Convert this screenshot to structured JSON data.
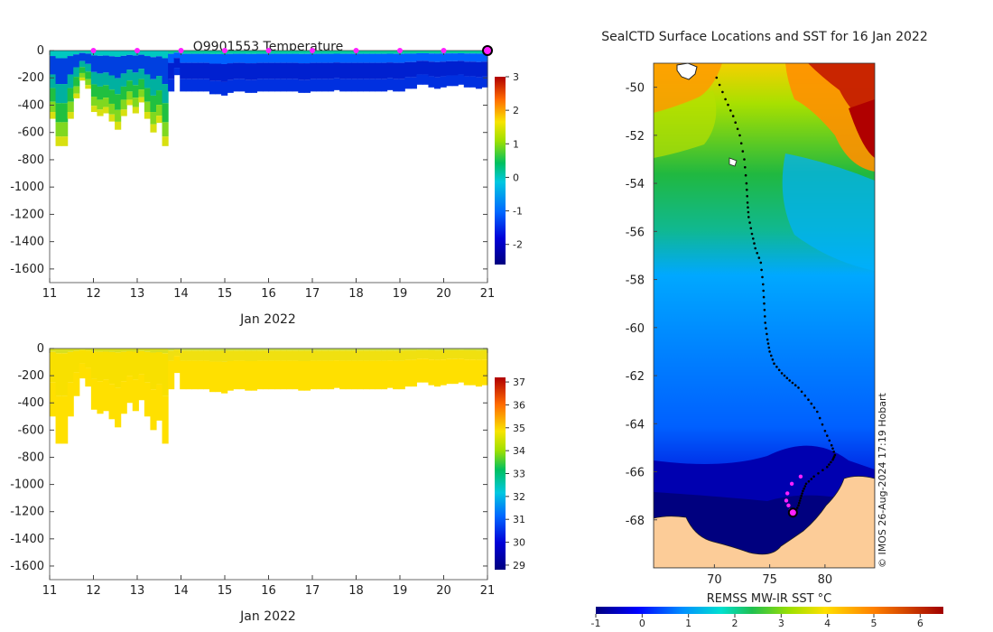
{
  "chart_data": [
    {
      "type": "heatmap",
      "title": "Q9901553  Temperature",
      "xlabel": "Jan 2022",
      "ylabel": "",
      "xlim": [
        11,
        21
      ],
      "ylim": [
        -1700,
        0
      ],
      "x_ticks": [
        11,
        12,
        13,
        14,
        15,
        16,
        17,
        18,
        19,
        20,
        21
      ],
      "y_ticks": [
        0,
        -200,
        -400,
        -600,
        -800,
        -1000,
        -1200,
        -1400,
        -1600
      ],
      "colorbar": {
        "min": -2.6,
        "max": 3,
        "ticks": [
          -2,
          -1,
          0,
          1,
          2,
          3
        ]
      },
      "profile_max_depth": [
        -500,
        -700,
        -700,
        -500,
        -350,
        -220,
        -280,
        -450,
        -480,
        -460,
        -520,
        -580,
        -480,
        -400,
        -460,
        -380,
        -500,
        -600,
        -530,
        -700,
        -300,
        -180,
        -300,
        -300,
        -300,
        -300,
        -300,
        -320,
        -320,
        -330,
        -310,
        -300,
        -300,
        -310,
        -310,
        -300,
        -300,
        -300,
        -300,
        -300,
        -300,
        -300,
        -310,
        -310,
        -300,
        -300,
        -300,
        -300,
        -290,
        -300,
        -300,
        -300,
        -300,
        -300,
        -300,
        -300,
        -300,
        -290,
        -300,
        -300,
        -280,
        -280,
        -250,
        -250,
        -270,
        -280,
        -270,
        -260,
        -260,
        -250,
        -270,
        -270,
        -280,
        -270
      ],
      "profile_positions_day": [
        12,
        13,
        14,
        15,
        16,
        17,
        18,
        19,
        20
      ],
      "current_position_day": 21
    },
    {
      "type": "heatmap",
      "title": "",
      "xlabel": "Jan 2022",
      "ylabel": "",
      "xlim": [
        11,
        21
      ],
      "ylim": [
        -1700,
        0
      ],
      "x_ticks": [
        11,
        12,
        13,
        14,
        15,
        16,
        17,
        18,
        19,
        20,
        21
      ],
      "y_ticks": [
        0,
        -200,
        -400,
        -600,
        -800,
        -1000,
        -1200,
        -1400,
        -1600
      ],
      "colorbar": {
        "min": 28.8,
        "max": 37.2,
        "ticks": [
          29,
          30,
          31,
          32,
          33,
          34,
          35,
          36,
          37
        ]
      },
      "profile_max_depth": [
        -500,
        -700,
        -700,
        -500,
        -350,
        -220,
        -280,
        -450,
        -480,
        -460,
        -520,
        -580,
        -480,
        -400,
        -460,
        -380,
        -500,
        -600,
        -530,
        -700,
        -300,
        -180,
        -300,
        -300,
        -300,
        -300,
        -300,
        -320,
        -320,
        -330,
        -310,
        -300,
        -300,
        -310,
        -310,
        -300,
        -300,
        -300,
        -300,
        -300,
        -300,
        -300,
        -310,
        -310,
        -300,
        -300,
        -300,
        -300,
        -290,
        -300,
        -300,
        -300,
        -300,
        -300,
        -300,
        -300,
        -300,
        -290,
        -300,
        -300,
        -280,
        -280,
        -250,
        -250,
        -270,
        -280,
        -270,
        -260,
        -260,
        -250,
        -270,
        -270,
        -280,
        -270
      ]
    },
    {
      "type": "map",
      "title": "SealCTD Surface Locations and SST for 16 Jan 2022",
      "xlabel": "",
      "ylabel": "",
      "xlim": [
        64.5,
        84.5
      ],
      "ylim": [
        -70,
        -49
      ],
      "x_ticks": [
        70,
        75,
        80
      ],
      "y_ticks": [
        -50,
        -52,
        -54,
        -56,
        -58,
        -60,
        -62,
        -64,
        -66,
        -68
      ],
      "colorbar": {
        "label": "REMSS MW-IR SST °C",
        "min": -1,
        "max": 6.5,
        "ticks": [
          -1,
          0,
          1,
          2,
          3,
          4,
          5,
          6
        ]
      },
      "track_lon": [
        70.2,
        71.0,
        71.7,
        72.3,
        72.7,
        72.9,
        73.0,
        73.1,
        73.4,
        73.7,
        74.2,
        74.4,
        74.5,
        74.6,
        74.8,
        75.0,
        75.4,
        76.1,
        76.8,
        77.6,
        78.5,
        79.3,
        80.0,
        80.6,
        80.9,
        80.7,
        80.2,
        79.0,
        78.3,
        78.0,
        77.8,
        77.6,
        77.3
      ],
      "track_lat": [
        -49.6,
        -50.5,
        -51.2,
        -52.0,
        -53.0,
        -54.0,
        -54.8,
        -55.4,
        -56.1,
        -56.7,
        -57.3,
        -58.2,
        -59.0,
        -59.8,
        -60.5,
        -61.0,
        -61.5,
        -61.9,
        -62.2,
        -62.5,
        -63.0,
        -63.5,
        -64.3,
        -64.9,
        -65.3,
        -65.5,
        -65.8,
        -66.2,
        -66.5,
        -66.8,
        -67.1,
        -67.4,
        -67.7
      ],
      "recent_lon": [
        77.8,
        77.0,
        76.6,
        76.5,
        76.7,
        76.9
      ],
      "recent_lat": [
        -66.2,
        -66.5,
        -66.9,
        -67.2,
        -67.4,
        -67.6
      ],
      "current_position": {
        "lon": 77.1,
        "lat": -67.7
      }
    }
  ],
  "watermark": "© IMOS 26-Aug-2024 17:19 Hobart"
}
